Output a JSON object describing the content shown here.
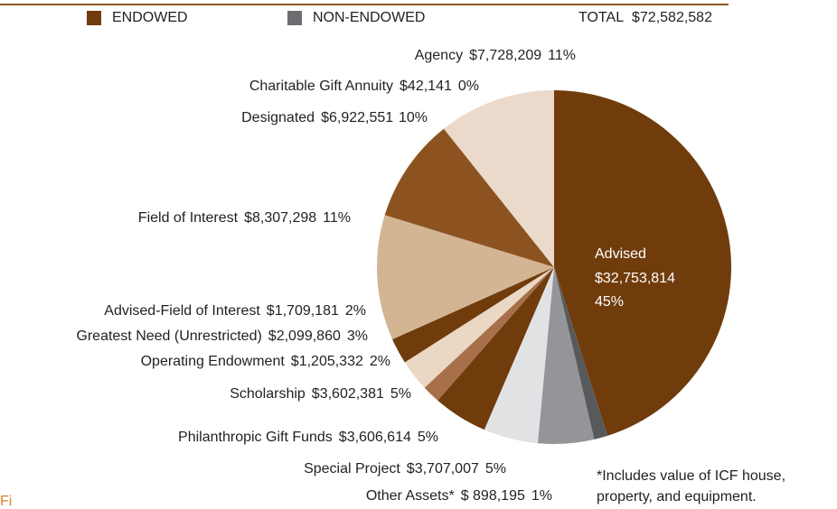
{
  "chart_data": {
    "type": "pie",
    "legend": [
      {
        "name": "ENDOWED",
        "color": "#703c0c"
      },
      {
        "name": "NON-ENDOWED",
        "color": "#6d6e71"
      }
    ],
    "total_label": "TOTAL",
    "total": 72582582,
    "total_value_label": "$72,582,582",
    "categories": [
      "Advised",
      "Other Assets*",
      "Special Project",
      "Philanthropic Gift Funds",
      "Scholarship",
      "Operating Endowment",
      "Greatest Need (Unrestricted)",
      "Advised-Field of Interest",
      "Field of Interest",
      "Designated",
      "Charitable Gift Annuity",
      "Agency"
    ],
    "values": [
      32753814,
      898195,
      3707007,
      3606614,
      3602381,
      1205332,
      2099860,
      1709181,
      8307298,
      6922551,
      42141,
      7728209
    ],
    "value_labels": [
      "$32,753,814",
      "$ 898,195",
      "$3,707,007",
      "$3,606,614",
      "$3,602,381",
      "$1,205,332",
      "$2,099,860",
      "$1,709,181",
      "$8,307,298",
      "$6,922,551",
      "$42,141",
      "$7,728,209"
    ],
    "shares": [
      45,
      1,
      5,
      5,
      5,
      2,
      3,
      2,
      11,
      10,
      0,
      11
    ],
    "share_labels": [
      "45%",
      "1%",
      "5%",
      "5%",
      "5%",
      "2%",
      "3%",
      "2%",
      "11%",
      "10%",
      "0%",
      "11%"
    ],
    "colors": [
      "#703c0c",
      "#58595b",
      "#939598",
      "#e1e2e4",
      "#703c0c",
      "#a7704a",
      "#ead7c4",
      "#703c0c",
      "#d3b594",
      "#8c5321",
      "#d3b594",
      "#ebdacb"
    ],
    "footnote": [
      "*Includes value of ICF house,",
      "property, and equipment."
    ],
    "fragment": "Fi"
  }
}
